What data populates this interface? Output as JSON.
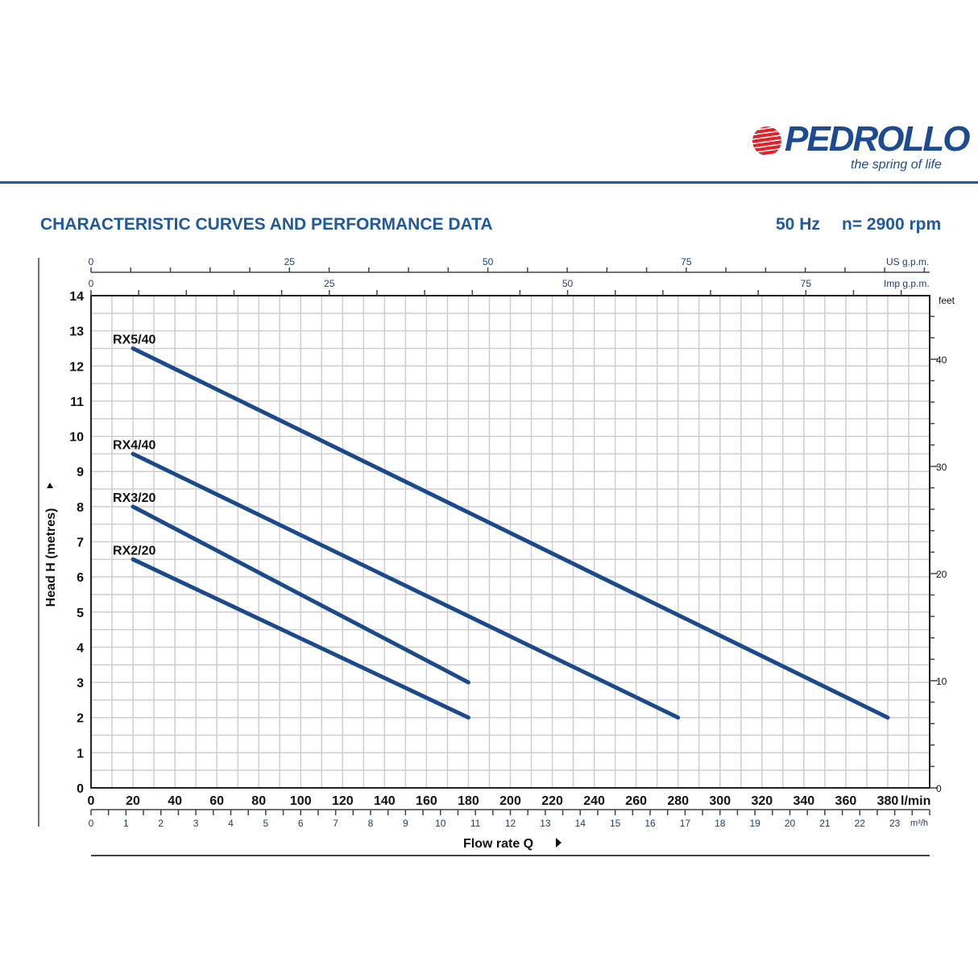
{
  "header": {
    "brand": "PEDROLLO",
    "tagline": "the spring of life",
    "title": "CHARACTERISTIC CURVES AND PERFORMANCE DATA",
    "frequency": "50 Hz",
    "speed": "n= 2900 rpm"
  },
  "colors": {
    "brand": "#1d5aa0",
    "curve": "#1b4a8c",
    "logo_red": "#e52229",
    "grid": "#cccccc"
  },
  "chart_data": {
    "type": "line",
    "xlabel": "Flow rate Q",
    "ylabel": "Head H (metres)",
    "xunit": "l/min",
    "xlim": [
      0,
      400
    ],
    "ylim": [
      0,
      14
    ],
    "grid": true,
    "x_ticks": [
      0,
      20,
      40,
      60,
      80,
      100,
      120,
      140,
      160,
      180,
      200,
      220,
      240,
      260,
      280,
      300,
      320,
      340,
      360,
      380
    ],
    "y_ticks": [
      0,
      1,
      2,
      3,
      4,
      5,
      6,
      7,
      8,
      9,
      10,
      11,
      12,
      13,
      14
    ],
    "secondary_axes": {
      "m3h": {
        "unit": "m³/h",
        "ticks": [
          0,
          1,
          2,
          3,
          4,
          5,
          6,
          7,
          8,
          9,
          10,
          11,
          12,
          13,
          14,
          15,
          16,
          17,
          18,
          19,
          20,
          21,
          22,
          23
        ]
      },
      "us_gpm": {
        "unit": "US g.p.m.",
        "ticks": [
          0,
          25,
          50,
          75
        ]
      },
      "imp_gpm": {
        "unit": "Imp g.p.m.",
        "ticks": [
          0,
          25,
          50,
          75
        ]
      },
      "feet": {
        "unit": "feet",
        "ticks": [
          0,
          10,
          20,
          30,
          40
        ]
      }
    },
    "series": [
      {
        "name": "RX5/40",
        "x": [
          20,
          380
        ],
        "y": [
          12.5,
          2
        ]
      },
      {
        "name": "RX4/40",
        "x": [
          20,
          280
        ],
        "y": [
          9.5,
          2
        ]
      },
      {
        "name": "RX3/20",
        "x": [
          20,
          180
        ],
        "y": [
          8,
          3
        ]
      },
      {
        "name": "RX2/20",
        "x": [
          20,
          180
        ],
        "y": [
          6.5,
          2
        ]
      }
    ]
  }
}
